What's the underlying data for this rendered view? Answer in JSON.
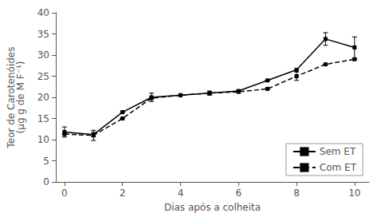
{
  "chart_data": {
    "type": "line",
    "xlabel": "Dias após a colheita",
    "ylabel": "Teor de Carotenóides\n(µg g de M F⁻¹)",
    "xlim": [
      -0.3,
      10.5
    ],
    "xticks": [
      0,
      2,
      4,
      6,
      8,
      10
    ],
    "ylim": [
      0,
      40
    ],
    "yticks": [
      0,
      5,
      10,
      15,
      20,
      25,
      30,
      35,
      40
    ],
    "grid": false,
    "legend": "lower right",
    "series": [
      {
        "name": "Sem ET",
        "color": "#000000",
        "line_style": "solid",
        "marker": "square",
        "x": [
          0,
          1,
          2,
          3,
          4,
          5,
          6,
          7,
          8,
          9,
          10
        ],
        "values": [
          11.8,
          11.2,
          16.5,
          20.0,
          20.5,
          21.0,
          21.5,
          24.0,
          26.5,
          33.8,
          31.8
        ],
        "yerr": [
          1.2,
          0.5,
          0.0,
          1.0,
          0.0,
          0.0,
          0.0,
          0.0,
          0.0,
          1.5,
          2.5
        ]
      },
      {
        "name": "Com ET",
        "color": "#000000",
        "line_style": "dashed",
        "marker": "square",
        "x": [
          0,
          1,
          2,
          3,
          4,
          5,
          6,
          7,
          8,
          9,
          10
        ],
        "values": [
          11.3,
          11.0,
          15.0,
          19.8,
          20.5,
          21.0,
          21.3,
          22.0,
          25.0,
          27.8,
          29.0
        ],
        "yerr": [
          0.0,
          1.2,
          0.0,
          0.0,
          0.0,
          0.5,
          0.0,
          0.0,
          1.0,
          0.0,
          0.0
        ]
      }
    ]
  }
}
